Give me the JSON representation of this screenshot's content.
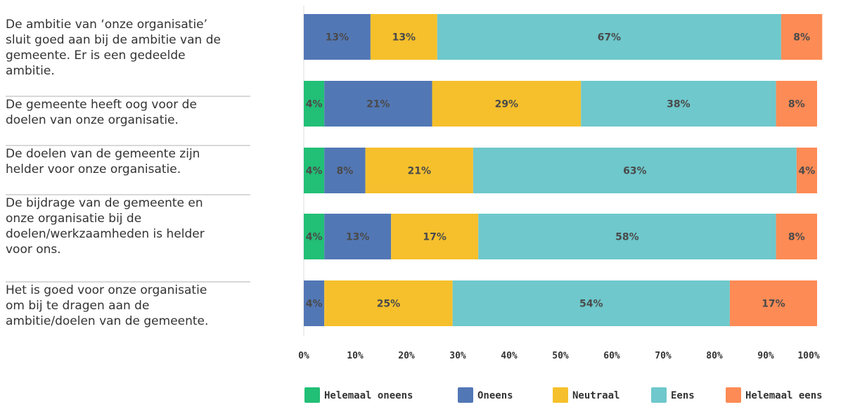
{
  "chart_data": {
    "type": "bar",
    "orientation": "horizontal",
    "stacked": true,
    "categories": [
      "De ambitie van ‘onze organisatie’ sluit goed aan bij de ambitie van de gemeente. Er is een gedeelde ambitie.",
      "De gemeente heeft oog voor de doelen van onze organisatie.",
      "De doelen van de gemeente zijn helder voor onze organisatie.",
      "De bijdrage van de gemeente en onze organisatie bij de doelen/werkzaamheden is helder voor ons.",
      "Het is goed voor onze organisatie om bij te dragen aan de ambitie/doelen van de gemeente."
    ],
    "category_lines": [
      [
        "De ambitie van ‘onze organisatie’",
        "sluit goed aan bij de ambitie van de",
        "gemeente. Er is een gedeelde",
        "ambitie."
      ],
      [
        "De gemeente heeft oog voor de",
        "doelen van onze organisatie."
      ],
      [
        "De doelen van de gemeente zijn",
        "helder voor onze organisatie."
      ],
      [
        "De bijdrage van de gemeente en",
        "onze organisatie bij de",
        "doelen/werkzaamheden is helder",
        "voor ons."
      ],
      [
        "Het is goed voor onze organisatie",
        "om bij te dragen aan de",
        "ambitie/doelen van de gemeente."
      ]
    ],
    "series": [
      {
        "name": "Helemaal oneens",
        "color": "#22bf76",
        "values": [
          0,
          4,
          4,
          4,
          0
        ],
        "labels": [
          "",
          "4%",
          "4%",
          "4%",
          ""
        ]
      },
      {
        "name": "Oneens",
        "color": "#5277b5",
        "values": [
          13,
          21,
          8,
          13,
          4
        ],
        "labels": [
          "13%",
          "21%",
          "8%",
          "13%",
          "4%"
        ]
      },
      {
        "name": "Neutraal",
        "color": "#f6c02c",
        "values": [
          13,
          29,
          21,
          17,
          25
        ],
        "labels": [
          "13%",
          "29%",
          "21%",
          "17%",
          "25%"
        ]
      },
      {
        "name": "Eens",
        "color": "#6ec8cc",
        "values": [
          67,
          38,
          63,
          58,
          54
        ],
        "labels": [
          "67%",
          "38%",
          "63%",
          "58%",
          "54%"
        ]
      },
      {
        "name": "Helemaal eens",
        "color": "#fd8b55",
        "values": [
          8,
          8,
          4,
          8,
          17
        ],
        "labels": [
          "8%",
          "8%",
          "4%",
          "8%",
          "17%"
        ]
      }
    ],
    "x_ticks": [
      "0%",
      "10%",
      "20%",
      "30%",
      "40%",
      "50%",
      "60%",
      "70%",
      "80%",
      "90%",
      "100%"
    ],
    "xlim": [
      0,
      100
    ],
    "legend_position": "bottom"
  }
}
